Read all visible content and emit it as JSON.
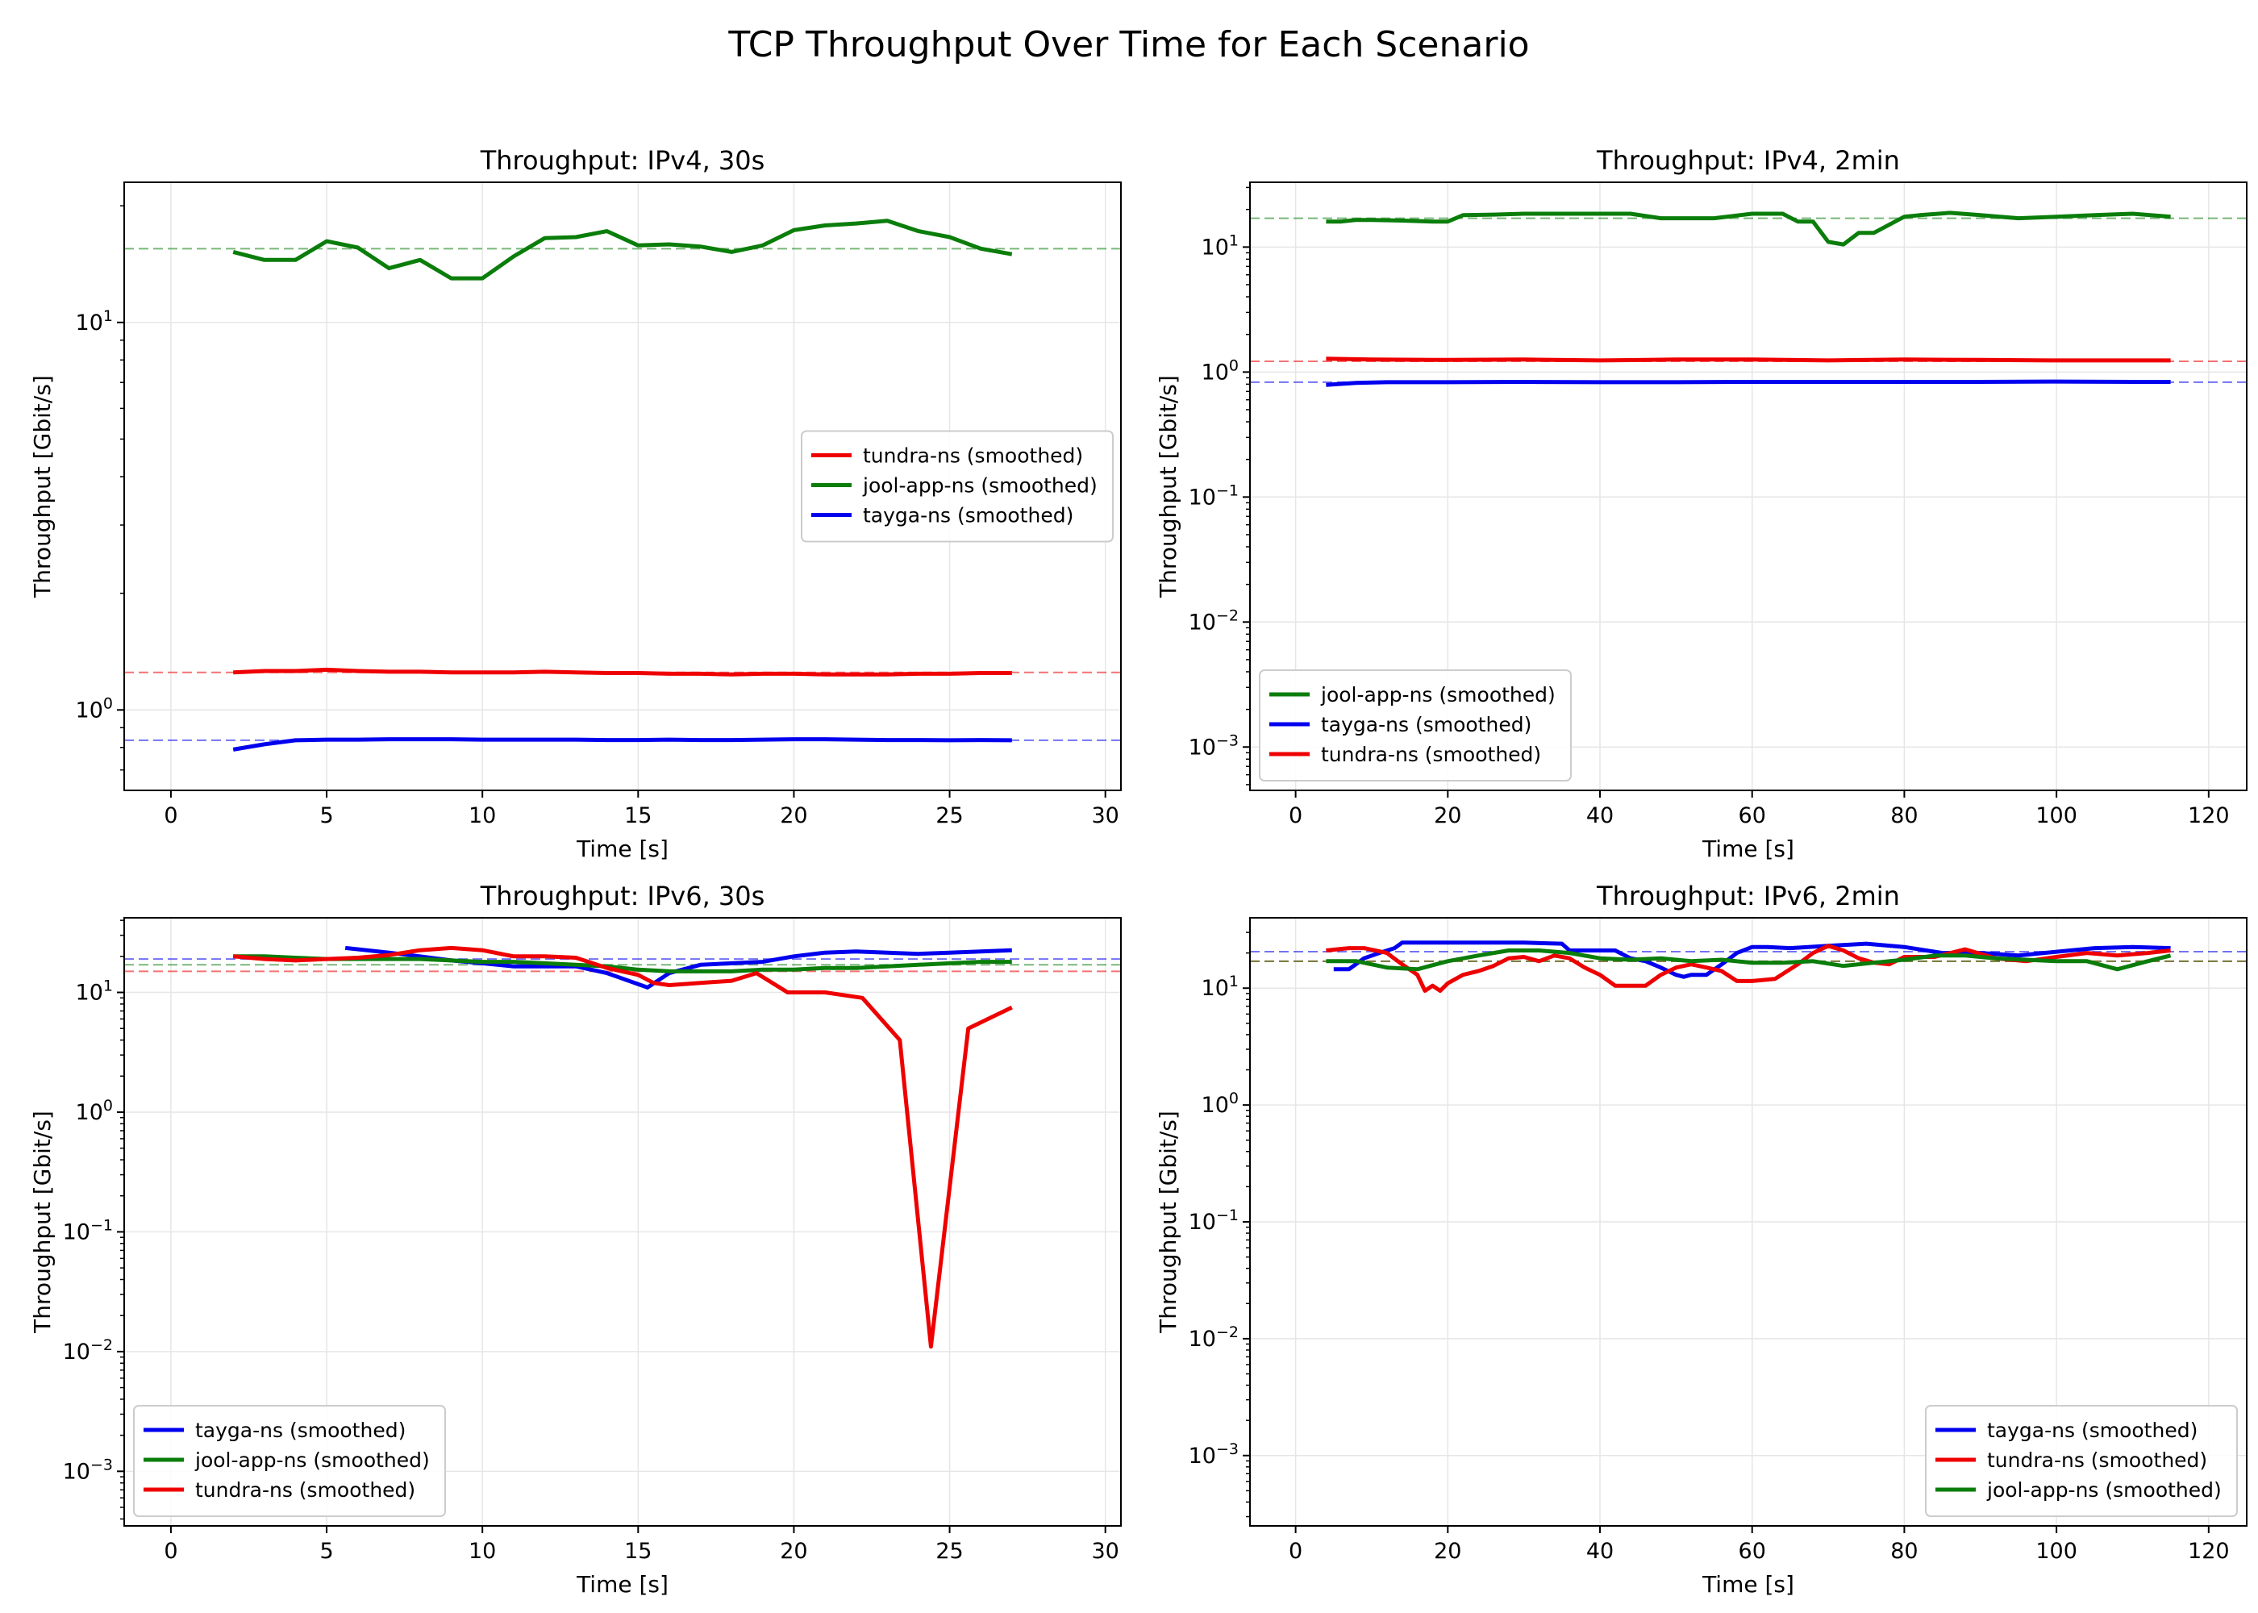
{
  "figure": {
    "suptitle": "TCP Throughput Over Time for Each Scenario"
  },
  "colors": {
    "tundra-ns": "#ee0000",
    "jool-app-ns": "#0a7d0a",
    "tayga-ns": "#0000ee"
  },
  "chart_data": [
    {
      "type": "line",
      "title": "Throughput: IPv4, 30s",
      "xlabel": "Time [s]",
      "ylabel": "Throughput [Gbit/s]",
      "yscale": "log",
      "xlim": [
        -1.5,
        30.5
      ],
      "ylim": [
        0.62,
        23
      ],
      "xticks": [
        0,
        5,
        10,
        15,
        20,
        25,
        30
      ],
      "xtick_labels": [
        "0",
        "5",
        "10",
        "15",
        "20",
        "25",
        "30"
      ],
      "yticks": [
        1,
        10
      ],
      "ytick_labels": [
        "10^0",
        "10^1"
      ],
      "grid": true,
      "legend_position": "center-right",
      "legend_order": [
        "tundra-ns",
        "jool-app-ns",
        "tayga-ns"
      ],
      "series": [
        {
          "name": "tundra-ns (smoothed)",
          "key": "tundra-ns",
          "mean": 1.25,
          "x": [
            2,
            3,
            4,
            5,
            6,
            7,
            8,
            9,
            10,
            11,
            12,
            13,
            14,
            15,
            16,
            17,
            18,
            19,
            20,
            21,
            22,
            23,
            24,
            25,
            26,
            27
          ],
          "y": [
            1.25,
            1.26,
            1.26,
            1.27,
            1.26,
            1.255,
            1.255,
            1.25,
            1.25,
            1.25,
            1.255,
            1.25,
            1.245,
            1.245,
            1.24,
            1.24,
            1.235,
            1.24,
            1.24,
            1.235,
            1.235,
            1.235,
            1.24,
            1.24,
            1.245,
            1.245
          ]
        },
        {
          "name": "jool-app-ns (smoothed)",
          "key": "jool-app-ns",
          "mean": 15.5,
          "x": [
            2,
            3,
            4,
            5,
            6,
            7,
            8,
            9,
            10,
            11,
            12,
            13,
            14,
            15,
            16,
            17,
            18,
            19,
            20,
            21,
            22,
            23,
            24,
            25,
            26,
            27
          ],
          "y": [
            15.2,
            14.5,
            14.5,
            16.2,
            15.6,
            13.8,
            14.5,
            13.0,
            13.0,
            14.8,
            16.5,
            16.6,
            17.2,
            15.8,
            15.9,
            15.7,
            15.2,
            15.8,
            17.3,
            17.8,
            18.0,
            18.3,
            17.2,
            16.6,
            15.5,
            15.0
          ]
        },
        {
          "name": "tayga-ns (smoothed)",
          "key": "tayga-ns",
          "mean": 0.835,
          "x": [
            2,
            3,
            4,
            5,
            6,
            7,
            8,
            9,
            10,
            11,
            12,
            13,
            14,
            15,
            16,
            17,
            18,
            19,
            20,
            21,
            22,
            23,
            24,
            25,
            26,
            27
          ],
          "y": [
            0.79,
            0.815,
            0.835,
            0.838,
            0.838,
            0.84,
            0.84,
            0.84,
            0.838,
            0.838,
            0.838,
            0.838,
            0.836,
            0.836,
            0.838,
            0.836,
            0.836,
            0.838,
            0.84,
            0.84,
            0.838,
            0.836,
            0.836,
            0.835,
            0.836,
            0.835
          ]
        }
      ]
    },
    {
      "type": "line",
      "title": "Throughput: IPv4, 2min",
      "xlabel": "Time [s]",
      "ylabel": "Throughput [Gbit/s]",
      "yscale": "log",
      "xlim": [
        -6,
        125
      ],
      "ylim": [
        0.00045,
        33
      ],
      "xticks": [
        0,
        20,
        40,
        60,
        80,
        100,
        120
      ],
      "xtick_labels": [
        "0",
        "20",
        "40",
        "60",
        "80",
        "100",
        "120"
      ],
      "yticks": [
        0.001,
        0.01,
        0.1,
        1,
        10
      ],
      "ytick_labels": [
        "10^-3",
        "10^-2",
        "10^-1",
        "10^0",
        "10^1"
      ],
      "grid": true,
      "legend_position": "lower-left",
      "legend_order": [
        "jool-app-ns",
        "tayga-ns",
        "tundra-ns"
      ],
      "series": [
        {
          "name": "jool-app-ns (smoothed)",
          "key": "jool-app-ns",
          "mean": 17.0,
          "x": [
            4,
            6,
            8,
            10,
            14,
            18,
            20,
            22,
            26,
            30,
            35,
            40,
            44,
            48,
            50,
            55,
            60,
            64,
            66,
            68,
            70,
            72,
            74,
            76,
            80,
            82,
            86,
            90,
            95,
            100,
            105,
            110,
            115
          ],
          "y": [
            16.0,
            16.0,
            16.5,
            16.5,
            16.3,
            16.0,
            16.0,
            18.0,
            18.2,
            18.5,
            18.5,
            18.5,
            18.5,
            17.0,
            17.0,
            17.0,
            18.5,
            18.5,
            16.0,
            16.0,
            11.0,
            10.5,
            13.0,
            13.0,
            17.5,
            18.0,
            18.8,
            18.0,
            17.0,
            17.5,
            18.0,
            18.5,
            17.5
          ]
        },
        {
          "name": "tayga-ns (smoothed)",
          "key": "tayga-ns",
          "mean": 0.83,
          "x": [
            4,
            8,
            12,
            20,
            30,
            40,
            50,
            60,
            70,
            80,
            90,
            100,
            110,
            115
          ],
          "y": [
            0.79,
            0.82,
            0.83,
            0.83,
            0.835,
            0.83,
            0.83,
            0.835,
            0.835,
            0.835,
            0.835,
            0.84,
            0.835,
            0.835
          ]
        },
        {
          "name": "tundra-ns (smoothed)",
          "key": "tundra-ns",
          "mean": 1.22,
          "x": [
            4,
            10,
            20,
            30,
            40,
            50,
            60,
            70,
            80,
            90,
            100,
            110,
            115
          ],
          "y": [
            1.28,
            1.26,
            1.25,
            1.26,
            1.24,
            1.26,
            1.26,
            1.24,
            1.26,
            1.25,
            1.24,
            1.24,
            1.24
          ]
        }
      ]
    },
    {
      "type": "line",
      "title": "Throughput: IPv6, 30s",
      "xlabel": "Time [s]",
      "ylabel": "Throughput [Gbit/s]",
      "yscale": "log",
      "xlim": [
        -1.5,
        30.5
      ],
      "ylim": [
        0.00035,
        42
      ],
      "xticks": [
        0,
        5,
        10,
        15,
        20,
        25,
        30
      ],
      "xtick_labels": [
        "0",
        "5",
        "10",
        "15",
        "20",
        "25",
        "30"
      ],
      "yticks": [
        0.001,
        0.01,
        0.1,
        1,
        10
      ],
      "ytick_labels": [
        "10^-3",
        "10^-2",
        "10^-1",
        "10^0",
        "10^1"
      ],
      "grid": true,
      "legend_position": "lower-left",
      "legend_order": [
        "tayga-ns",
        "jool-app-ns",
        "tundra-ns"
      ],
      "series": [
        {
          "name": "tayga-ns (smoothed)",
          "key": "tayga-ns",
          "mean": 19.0,
          "x": [
            5.6,
            7,
            8,
            9,
            10,
            11,
            12,
            13,
            14,
            15.3,
            16,
            17,
            18,
            19,
            20,
            21,
            22,
            23,
            24,
            25,
            26,
            27
          ],
          "y": [
            23.5,
            21.5,
            20.0,
            18.5,
            17.5,
            16.5,
            16.5,
            16.5,
            14.5,
            11.0,
            14.5,
            17.0,
            17.5,
            18.0,
            20.0,
            21.5,
            22.0,
            21.5,
            21.0,
            21.5,
            22.0,
            22.5
          ]
        },
        {
          "name": "jool-app-ns (smoothed)",
          "key": "jool-app-ns",
          "mean": 17.0,
          "x": [
            2,
            3,
            4,
            5,
            6,
            7,
            8,
            9,
            10,
            11,
            12,
            13,
            14,
            15,
            16,
            17,
            18,
            19,
            20,
            21,
            22,
            23,
            24,
            25,
            26,
            27
          ],
          "y": [
            20.0,
            20.0,
            19.5,
            19.0,
            19.0,
            19.0,
            19.0,
            18.5,
            18.0,
            18.0,
            17.5,
            17.0,
            16.5,
            15.5,
            15.0,
            15.0,
            15.0,
            15.5,
            15.5,
            16.0,
            16.0,
            16.5,
            17.0,
            17.5,
            18.0,
            18.0
          ]
        },
        {
          "name": "tundra-ns (smoothed)",
          "key": "tundra-ns",
          "mean": 15.0,
          "x": [
            2,
            3,
            4,
            5,
            6,
            7,
            8,
            9,
            10,
            11,
            12,
            13,
            14,
            15,
            15.5,
            16,
            17,
            18,
            18.8,
            19.8,
            21,
            22.2,
            23.4,
            24.4,
            25.6,
            27
          ],
          "y": [
            20.0,
            19.0,
            18.5,
            19.0,
            19.5,
            20.5,
            22.5,
            23.5,
            22.5,
            20.0,
            20.0,
            19.5,
            16.0,
            14.0,
            12.0,
            11.5,
            12.0,
            12.5,
            14.5,
            10.0,
            10.0,
            9.0,
            4.0,
            0.011,
            5.0,
            7.5
          ]
        }
      ]
    },
    {
      "type": "line",
      "title": "Throughput: IPv6, 2min",
      "xlabel": "Time [s]",
      "ylabel": "Throughput [Gbit/s]",
      "yscale": "log",
      "xlim": [
        -6,
        125
      ],
      "ylim": [
        0.00025,
        40
      ],
      "xticks": [
        0,
        20,
        40,
        60,
        80,
        100,
        120
      ],
      "xtick_labels": [
        "0",
        "20",
        "40",
        "60",
        "80",
        "100",
        "120"
      ],
      "yticks": [
        0.001,
        0.01,
        0.1,
        1,
        10
      ],
      "ytick_labels": [
        "10^-3",
        "10^-2",
        "10^-1",
        "10^0",
        "10^1"
      ],
      "grid": true,
      "legend_position": "lower-right",
      "legend_order": [
        "tayga-ns",
        "tundra-ns",
        "jool-app-ns"
      ],
      "series": [
        {
          "name": "tayga-ns (smoothed)",
          "key": "tayga-ns",
          "mean": 20.5,
          "x": [
            5,
            7,
            9,
            11,
            13,
            14,
            20,
            30,
            35,
            36,
            40,
            42,
            44,
            46,
            48,
            50,
            51,
            52,
            54,
            56,
            58,
            60,
            62,
            65,
            70,
            75,
            80,
            85,
            90,
            95,
            100,
            105,
            110,
            115
          ],
          "y": [
            14.5,
            14.5,
            18.0,
            20.0,
            22.0,
            24.5,
            24.5,
            24.5,
            24.0,
            21.0,
            21.0,
            21.0,
            18.0,
            17.0,
            15.0,
            13.0,
            12.5,
            13.0,
            13.0,
            16.0,
            20.0,
            22.5,
            22.5,
            22.0,
            23.0,
            24.0,
            22.5,
            20.0,
            20.0,
            19.0,
            20.5,
            22.0,
            22.5,
            22.0
          ]
        },
        {
          "name": "tundra-ns (smoothed)",
          "key": "tundra-ns",
          "mean": 17.0,
          "x": [
            4,
            7,
            9,
            12,
            14,
            16,
            17,
            18,
            19,
            20,
            22,
            24,
            26,
            28,
            30,
            32,
            34,
            36,
            38,
            40,
            42,
            44,
            46,
            48,
            50,
            52,
            54,
            56,
            58,
            60,
            63,
            66,
            68,
            70,
            72,
            74,
            76,
            78,
            80,
            84,
            88,
            92,
            96,
            100,
            104,
            108,
            112,
            115
          ],
          "y": [
            21.0,
            22.0,
            22.0,
            20.0,
            16.0,
            13.0,
            9.5,
            10.5,
            9.5,
            11.0,
            13.0,
            14.0,
            15.5,
            18.0,
            18.5,
            17.0,
            19.0,
            18.0,
            15.0,
            13.0,
            10.5,
            10.5,
            10.5,
            13.0,
            15.0,
            16.0,
            15.0,
            14.0,
            11.5,
            11.5,
            12.0,
            16.0,
            20.0,
            23.0,
            21.0,
            18.0,
            16.5,
            16.0,
            18.5,
            18.5,
            21.5,
            18.0,
            17.0,
            18.5,
            20.0,
            19.0,
            20.0,
            21.0
          ]
        },
        {
          "name": "jool-app-ns (smoothed)",
          "key": "jool-app-ns",
          "mean": 17.0,
          "x": [
            4,
            8,
            12,
            16,
            20,
            24,
            28,
            32,
            36,
            40,
            44,
            48,
            52,
            56,
            60,
            64,
            68,
            72,
            76,
            80,
            84,
            88,
            92,
            96,
            100,
            104,
            108,
            112,
            115
          ],
          "y": [
            17.0,
            17.0,
            15.0,
            14.5,
            17.0,
            19.0,
            21.0,
            21.0,
            20.0,
            18.0,
            17.5,
            18.0,
            17.0,
            17.5,
            16.5,
            16.5,
            17.0,
            15.5,
            16.5,
            17.5,
            19.0,
            19.0,
            18.0,
            17.5,
            17.0,
            17.0,
            14.5,
            17.0,
            19.0
          ]
        }
      ]
    }
  ]
}
